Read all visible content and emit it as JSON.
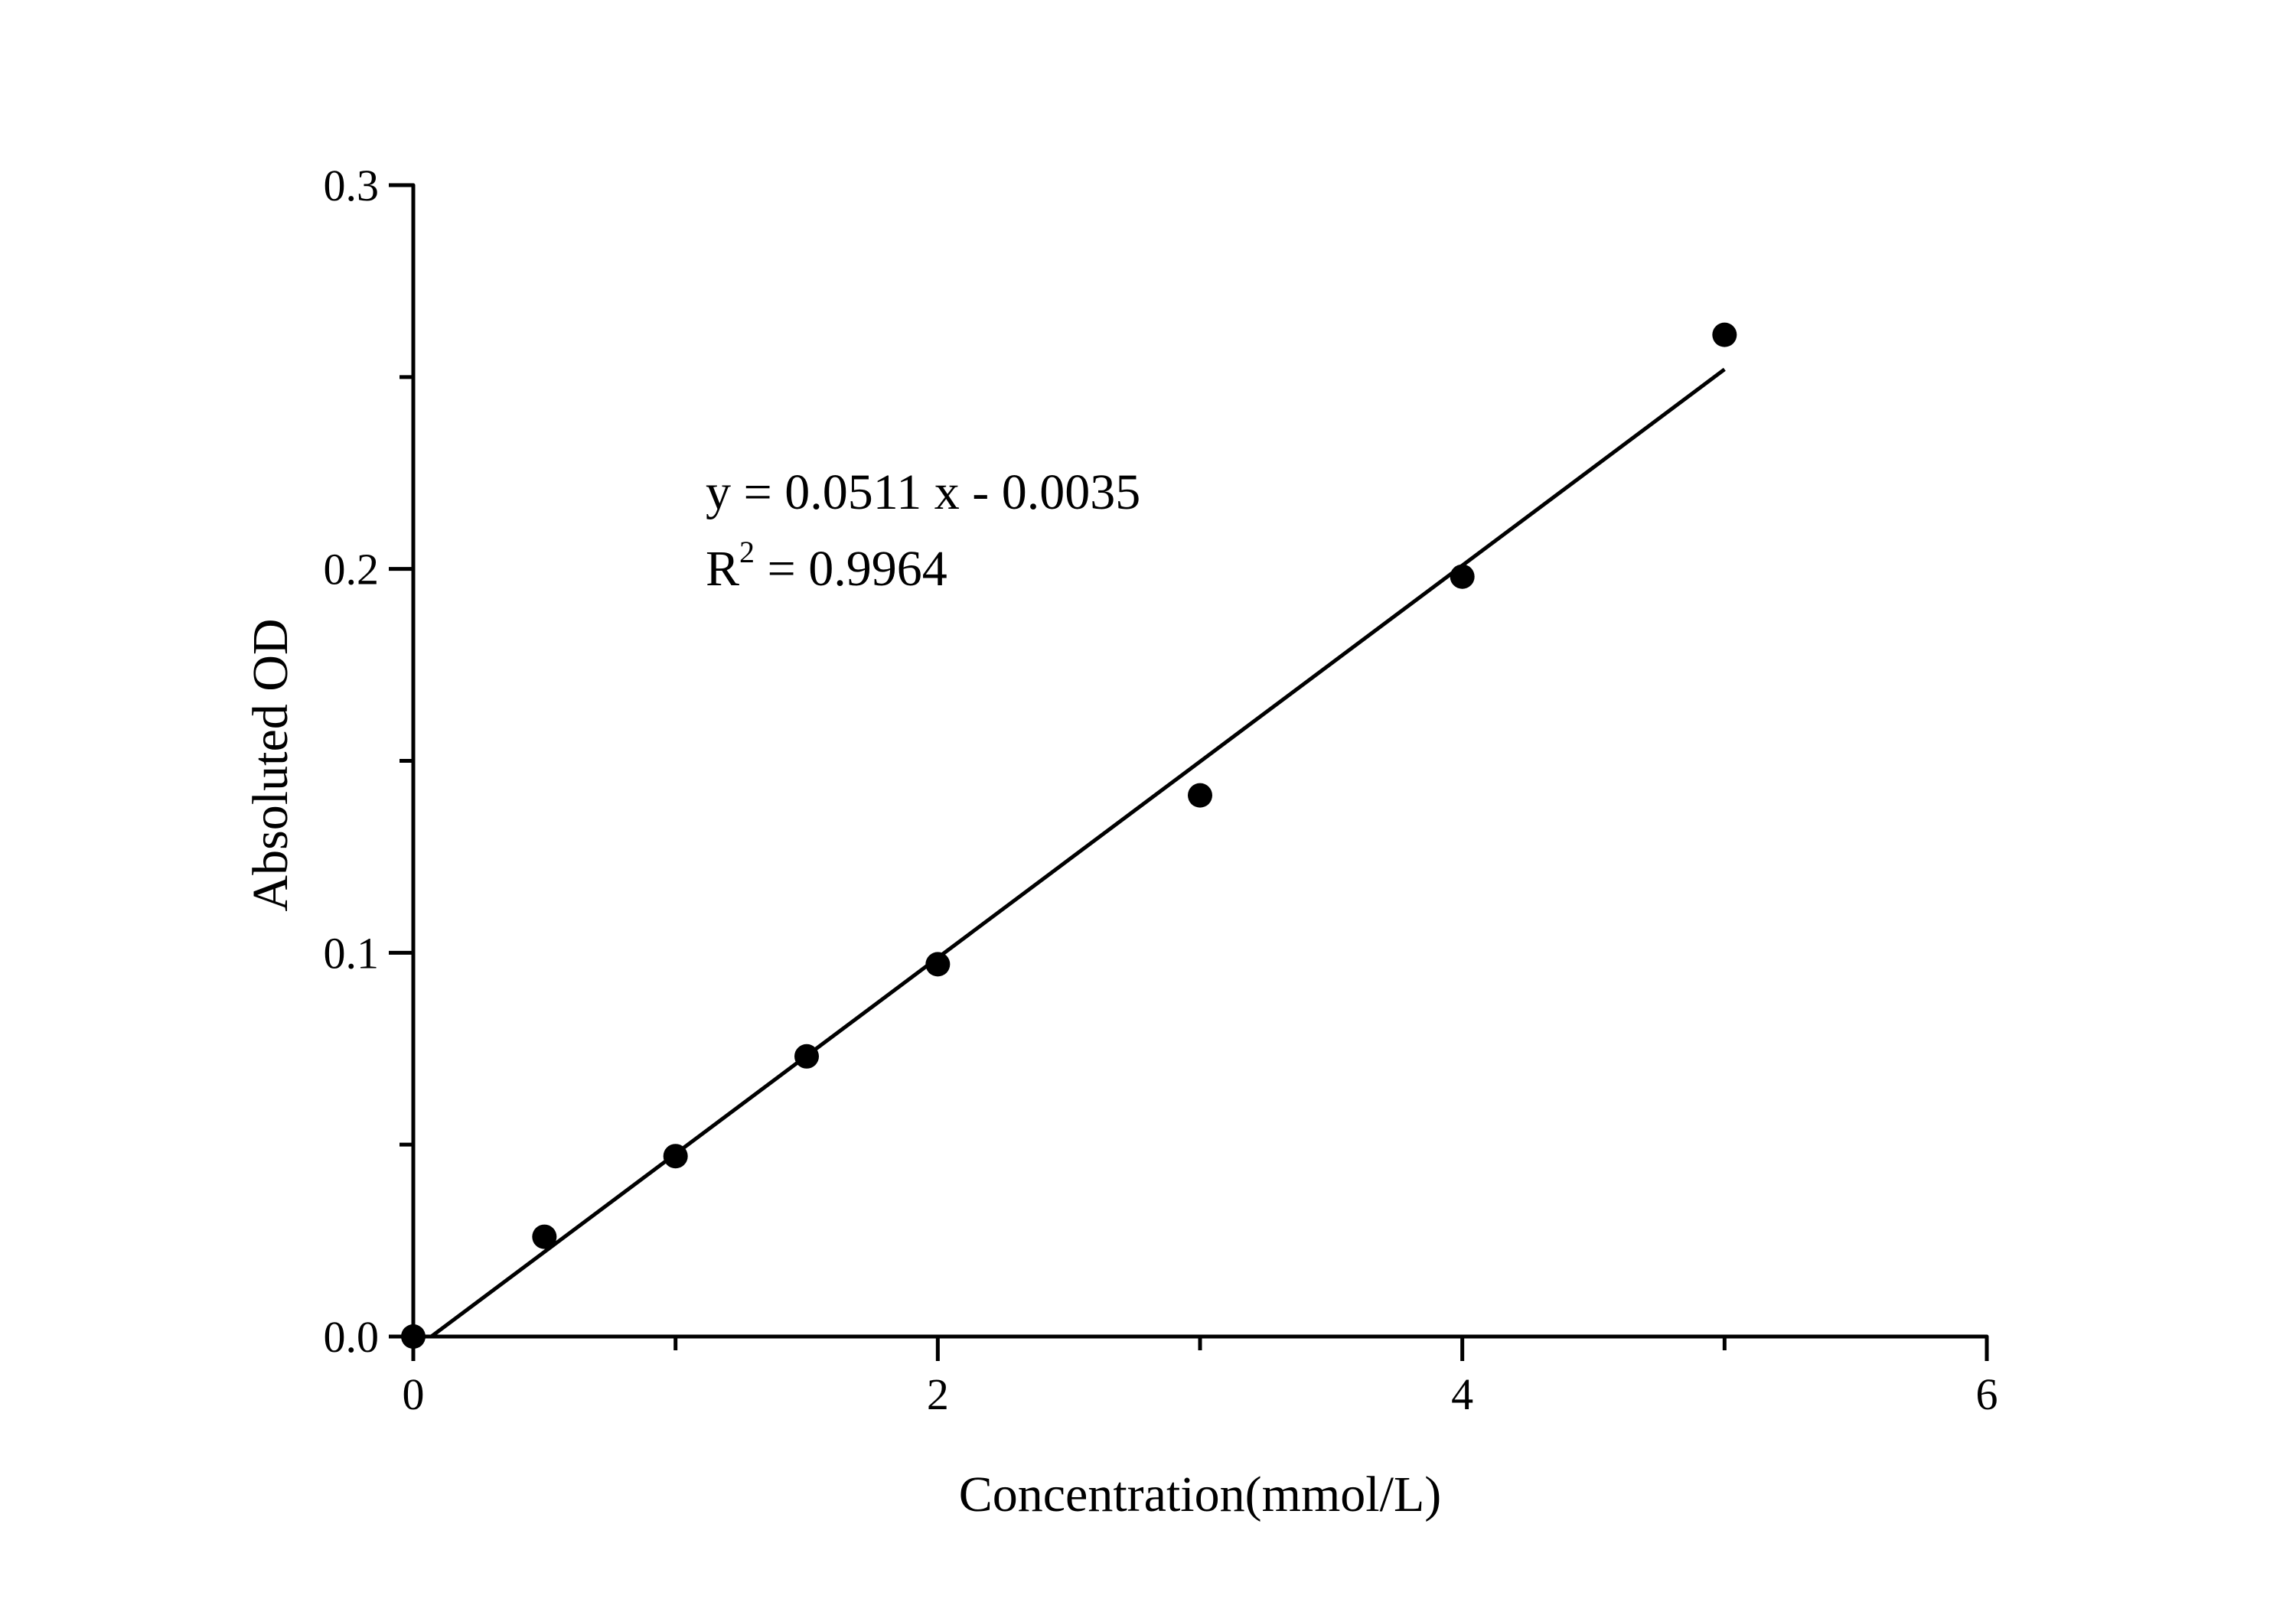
{
  "chart_data": {
    "type": "scatter",
    "title": "",
    "xlabel": "Concentration(mmol/L)",
    "ylabel": "Absoluted OD",
    "xlim": [
      0,
      6
    ],
    "ylim": [
      0,
      0.3
    ],
    "x_ticks": [
      0,
      2,
      4,
      6
    ],
    "x_tick_labels": [
      "0",
      "2",
      "4",
      "6"
    ],
    "x_minor_ticks": [
      1,
      3,
      5
    ],
    "y_ticks": [
      0,
      0.1,
      0.2,
      0.3
    ],
    "y_tick_labels": [
      "0.0",
      "0.1",
      "0.2",
      "0.3"
    ],
    "y_minor_ticks": [
      0.05,
      0.15,
      0.25
    ],
    "grid": false,
    "series": [
      {
        "x": [
          0,
          0.5,
          1,
          1.5,
          2,
          3,
          4,
          5
        ],
        "y": [
          0.0,
          0.026,
          0.047,
          0.073,
          0.097,
          0.141,
          0.198,
          0.261
        ],
        "marker": "filled-circle",
        "color": "#000000"
      }
    ],
    "fit_line": {
      "slope": 0.0511,
      "intercept": -0.0035,
      "x_range": [
        0.07,
        5
      ],
      "color": "#000000"
    },
    "annotation": {
      "equation": "y = 0.0511 x - 0.0035",
      "r2_prefix": "R",
      "r2_sup": "2",
      "r2_value": " = 0.9964"
    }
  }
}
